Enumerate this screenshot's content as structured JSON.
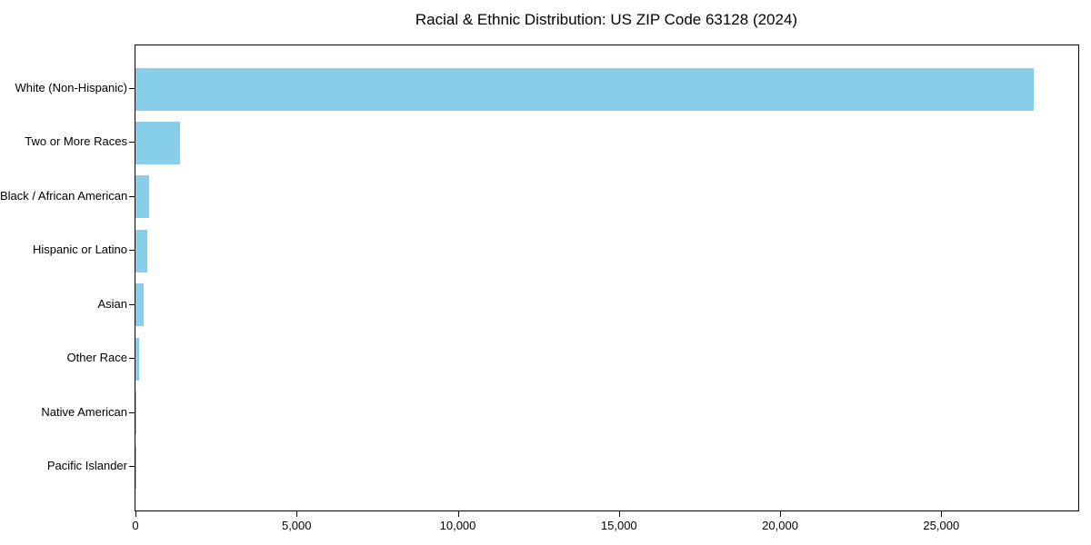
{
  "title": "Racial & Ethnic Distribution: US ZIP Code 63128 (2024)",
  "chart_data": {
    "type": "bar",
    "orientation": "horizontal",
    "title": "Racial & Ethnic Distribution: US ZIP Code 63128 (2024)",
    "categories": [
      "White (Non-Hispanic)",
      "Two or More Races",
      "Black / African American",
      "Hispanic or Latino",
      "Asian",
      "Other Race",
      "Native American",
      "Pacific Islander"
    ],
    "values": [
      27860,
      1380,
      430,
      375,
      260,
      120,
      25,
      5
    ],
    "xlabel": "",
    "ylabel": "",
    "xlim": [
      0,
      29250
    ],
    "xticks": [
      0,
      5000,
      10000,
      15000,
      20000,
      25000
    ],
    "xtick_labels": [
      "0",
      "5,000",
      "10,000",
      "15,000",
      "20,000",
      "25,000"
    ],
    "bar_color": "#87CEEB",
    "grid": false,
    "legend": null,
    "plot_border": true
  }
}
